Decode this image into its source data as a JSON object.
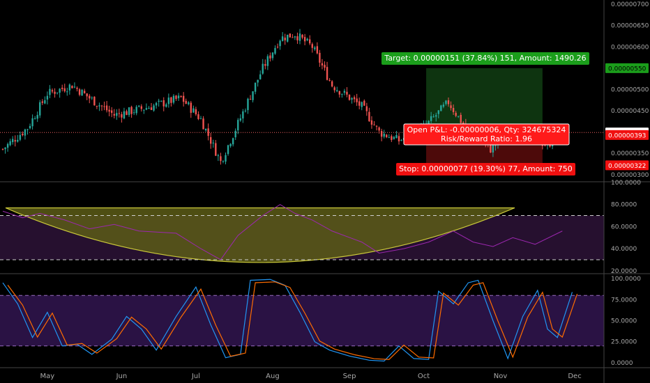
{
  "colors": {
    "background": "#000000",
    "up_candle": "#26a69a",
    "down_candle": "#ef5350",
    "target_green": "#1b9e1b",
    "stop_red": "#f01010",
    "open_pnl_red": "#ff1a1a",
    "rsi_line": "#9c27b0",
    "rsi_band": "#26102f",
    "stoch_k": "#2196f3",
    "stoch_d": "#ff6d00",
    "stoch_band": "#2a1244",
    "arc_fill": "#5c5c16",
    "arc_line": "#c9c73a",
    "axis_text": "#a9a9a9"
  },
  "trade": {
    "target_label": "Target: 0.00000151 (37.84%) 151, Amount: 1490.26",
    "open_pnl_label": "Open P&L: -0.00000006, Qty: 324675324",
    "risk_reward_label": "Risk/Reward Ratio: 1.96",
    "stop_label": "Stop: 0.00000077 (19.30%) 77, Amount: 750"
  },
  "price_tags": [
    {
      "text": "0.00000550",
      "value": 5.5e-06,
      "color": "#1b9e1b",
      "text_color": "#000000"
    },
    {
      "text": "0.00000399",
      "value": 3.99e-06,
      "color": "#ffffff",
      "text_color": "#000000"
    },
    {
      "text": "0.00000393",
      "value": 3.93e-06,
      "color": "#f01010",
      "text_color": "#ffffff"
    },
    {
      "text": "0.00000322",
      "value": 3.22e-06,
      "color": "#f01010",
      "text_color": "#ffffff"
    }
  ],
  "chart_data": [
    {
      "type": "candlestick",
      "pane": "price",
      "y_ticks": [
        "0.00000700",
        "0.00000650",
        "0.00000600",
        "0.00000550",
        "0.00000500",
        "0.00000450",
        "0.00000400",
        "0.00000350",
        "0.00000300"
      ],
      "ylim": [
        2.85e-06,
        7.1e-06
      ],
      "entry_price": 3.99e-06,
      "last_price": 3.93e-06,
      "target_price": 5.5e-06,
      "stop_price": 3.22e-06,
      "close_trend": [
        {
          "day": 0,
          "close": 3.6e-06
        },
        {
          "day": 10,
          "close": 4.1e-06
        },
        {
          "day": 18,
          "close": 4.9e-06
        },
        {
          "day": 28,
          "close": 5.1e-06
        },
        {
          "day": 35,
          "close": 4.8e-06
        },
        {
          "day": 45,
          "close": 4.4e-06
        },
        {
          "day": 60,
          "close": 4.6e-06
        },
        {
          "day": 72,
          "close": 4.8e-06
        },
        {
          "day": 80,
          "close": 4.3e-06
        },
        {
          "day": 88,
          "close": 3.3e-06
        },
        {
          "day": 95,
          "close": 4.2e-06
        },
        {
          "day": 105,
          "close": 5.5e-06
        },
        {
          "day": 112,
          "close": 6.2e-06
        },
        {
          "day": 118,
          "close": 6.3e-06
        },
        {
          "day": 125,
          "close": 6e-06
        },
        {
          "day": 133,
          "close": 5.1e-06
        },
        {
          "day": 145,
          "close": 4.6e-06
        },
        {
          "day": 152,
          "close": 4e-06
        },
        {
          "day": 160,
          "close": 3.8e-06
        },
        {
          "day": 170,
          "close": 4.1e-06
        },
        {
          "day": 180,
          "close": 4.7e-06
        },
        {
          "day": 188,
          "close": 4e-06
        },
        {
          "day": 197,
          "close": 3.6e-06
        },
        {
          "day": 205,
          "close": 4e-06
        },
        {
          "day": 212,
          "close": 3.9e-06
        },
        {
          "day": 220,
          "close": 3.7e-06
        },
        {
          "day": 226,
          "close": 4e-06
        }
      ]
    },
    {
      "type": "line",
      "pane": "rsi",
      "y_ticks": [
        "100.0000",
        "80.0000",
        "60.0000",
        "40.0000",
        "20.0000"
      ],
      "ylim": [
        18,
        100
      ],
      "band": [
        30,
        70
      ],
      "series": [
        {
          "values": [
            {
              "day": 0,
              "v": 74
            },
            {
              "day": 8,
              "v": 68
            },
            {
              "day": 15,
              "v": 72
            },
            {
              "day": 25,
              "v": 66
            },
            {
              "day": 35,
              "v": 58
            },
            {
              "day": 45,
              "v": 62
            },
            {
              "day": 55,
              "v": 56
            },
            {
              "day": 70,
              "v": 54
            },
            {
              "day": 80,
              "v": 40
            },
            {
              "day": 88,
              "v": 30
            },
            {
              "day": 95,
              "v": 52
            },
            {
              "day": 105,
              "v": 70
            },
            {
              "day": 112,
              "v": 80
            },
            {
              "day": 118,
              "v": 72
            },
            {
              "day": 125,
              "v": 66
            },
            {
              "day": 133,
              "v": 56
            },
            {
              "day": 145,
              "v": 46
            },
            {
              "day": 152,
              "v": 36
            },
            {
              "day": 162,
              "v": 40
            },
            {
              "day": 172,
              "v": 46
            },
            {
              "day": 182,
              "v": 56
            },
            {
              "day": 190,
              "v": 46
            },
            {
              "day": 198,
              "v": 42
            },
            {
              "day": 206,
              "v": 50
            },
            {
              "day": 215,
              "v": 44
            },
            {
              "day": 226,
              "v": 56
            }
          ]
        }
      ]
    },
    {
      "type": "line",
      "pane": "stoch",
      "y_ticks": [
        "100.0000",
        "75.0000",
        "50.0000",
        "25.0000",
        "0.0000"
      ],
      "ylim": [
        -5,
        105
      ],
      "band": [
        20,
        80
      ],
      "series": [
        {
          "values": [
            {
              "day": 0,
              "v": 95
            },
            {
              "day": 6,
              "v": 70
            },
            {
              "day": 12,
              "v": 30
            },
            {
              "day": 18,
              "v": 60
            },
            {
              "day": 24,
              "v": 20
            },
            {
              "day": 30,
              "v": 22
            },
            {
              "day": 36,
              "v": 10
            },
            {
              "day": 44,
              "v": 28
            },
            {
              "day": 50,
              "v": 55
            },
            {
              "day": 56,
              "v": 40
            },
            {
              "day": 62,
              "v": 15
            },
            {
              "day": 70,
              "v": 55
            },
            {
              "day": 78,
              "v": 90
            },
            {
              "day": 84,
              "v": 45
            },
            {
              "day": 90,
              "v": 6
            },
            {
              "day": 96,
              "v": 10
            },
            {
              "day": 100,
              "v": 98
            },
            {
              "day": 108,
              "v": 99
            },
            {
              "day": 114,
              "v": 92
            },
            {
              "day": 120,
              "v": 60
            },
            {
              "day": 126,
              "v": 25
            },
            {
              "day": 132,
              "v": 15
            },
            {
              "day": 140,
              "v": 8
            },
            {
              "day": 148,
              "v": 3
            },
            {
              "day": 154,
              "v": 2
            },
            {
              "day": 160,
              "v": 20
            },
            {
              "day": 166,
              "v": 5
            },
            {
              "day": 172,
              "v": 4
            },
            {
              "day": 176,
              "v": 85
            },
            {
              "day": 182,
              "v": 70
            },
            {
              "day": 188,
              "v": 95
            },
            {
              "day": 192,
              "v": 98
            },
            {
              "day": 198,
              "v": 50
            },
            {
              "day": 204,
              "v": 5
            },
            {
              "day": 210,
              "v": 55
            },
            {
              "day": 216,
              "v": 86
            },
            {
              "day": 220,
              "v": 40
            },
            {
              "day": 224,
              "v": 30
            },
            {
              "day": 230,
              "v": 84
            }
          ]
        }
      ]
    }
  ],
  "time_axis": {
    "labels": [
      {
        "text": "May",
        "day": 18
      },
      {
        "text": "Jun",
        "day": 48
      },
      {
        "text": "Jul",
        "day": 78
      },
      {
        "text": "Aug",
        "day": 109
      },
      {
        "text": "Sep",
        "day": 140
      },
      {
        "text": "Oct",
        "day": 170
      },
      {
        "text": "Nov",
        "day": 201
      },
      {
        "text": "Dec",
        "day": 231
      }
    ]
  }
}
